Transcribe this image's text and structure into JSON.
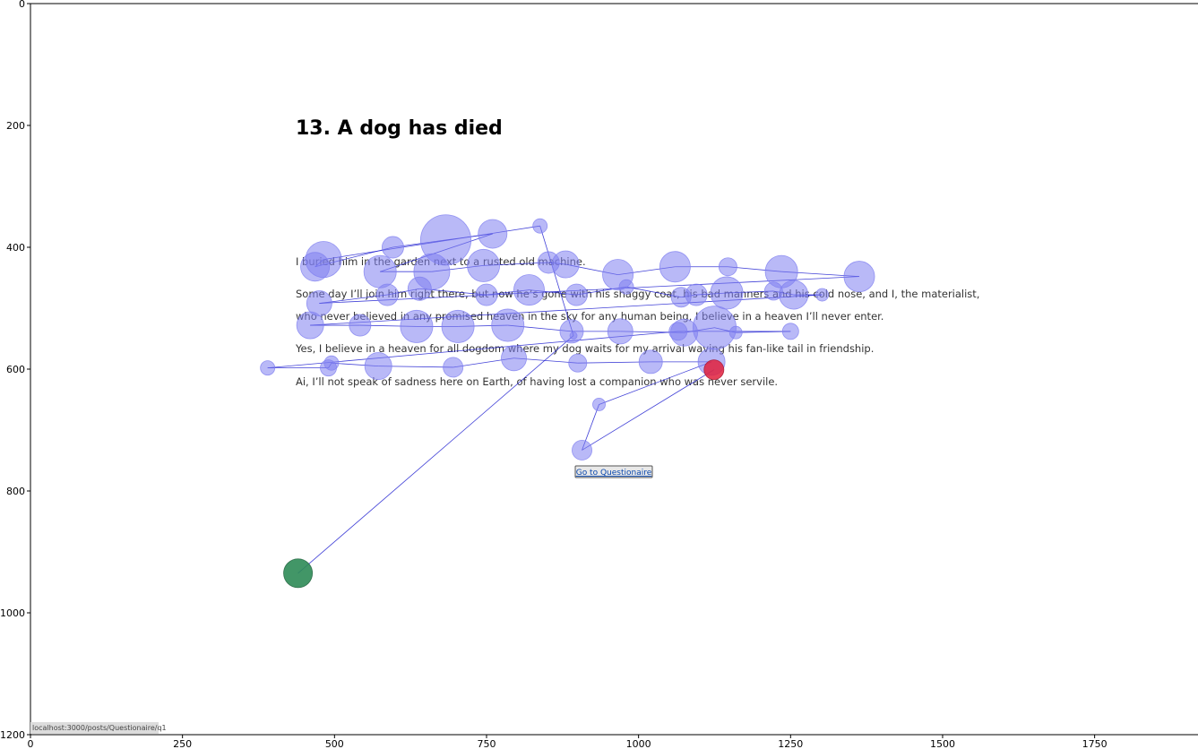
{
  "page": {
    "title": "13. A dog has died",
    "lines": [
      "I buried him in the garden next to a rusted old machine.",
      "Some day I’ll join him right there, but now he’s gone with his shaggy coat, his bad manners and his cold nose, and I, the materialist,",
      "who never believed in any promised heaven in the sky for any human being, I believe in a heaven I’ll never enter.",
      "Yes, I believe in a heaven for all dogdom where my dog waits for my arrival waving his fan-like tail in friendship.",
      "Ai, I’ll not speak of sadness here on Earth, of having lost a companion who was never servile."
    ],
    "button_label": "Go to Questionaire",
    "status_url": "localhost:3000/posts/Questionaire/q1"
  },
  "colors": {
    "fixation": "#8080f0",
    "path": "#2020d0",
    "start": "#2e8b57",
    "end": "#e0203c"
  },
  "chart_data": {
    "type": "scatter",
    "subtype": "gaze-scanpath",
    "xlim": [
      0,
      1920
    ],
    "ylim": [
      1200,
      0
    ],
    "x_ticks": [
      0,
      250,
      500,
      750,
      1000,
      1250,
      1500,
      1750
    ],
    "y_ticks": [
      0,
      200,
      400,
      600,
      800,
      1000,
      1200
    ],
    "xlabel": "",
    "ylabel": "",
    "grid": false,
    "fixations": [
      {
        "x": 440,
        "y": 935,
        "r": 16,
        "role": "start"
      },
      {
        "x": 893,
        "y": 545,
        "r": 4
      },
      {
        "x": 838,
        "y": 365,
        "r": 8
      },
      {
        "x": 482,
        "y": 420,
        "r": 20
      },
      {
        "x": 468,
        "y": 432,
        "r": 16
      },
      {
        "x": 596,
        "y": 400,
        "r": 12
      },
      {
        "x": 683,
        "y": 388,
        "r": 28
      },
      {
        "x": 760,
        "y": 378,
        "r": 16
      },
      {
        "x": 575,
        "y": 440,
        "r": 18
      },
      {
        "x": 660,
        "y": 440,
        "r": 20
      },
      {
        "x": 745,
        "y": 430,
        "r": 18
      },
      {
        "x": 852,
        "y": 425,
        "r": 12
      },
      {
        "x": 880,
        "y": 428,
        "r": 15
      },
      {
        "x": 966,
        "y": 445,
        "r": 17
      },
      {
        "x": 1060,
        "y": 432,
        "r": 17
      },
      {
        "x": 1147,
        "y": 432,
        "r": 10
      },
      {
        "x": 1235,
        "y": 440,
        "r": 18
      },
      {
        "x": 1363,
        "y": 448,
        "r": 17
      },
      {
        "x": 475,
        "y": 492,
        "r": 14
      },
      {
        "x": 587,
        "y": 478,
        "r": 12
      },
      {
        "x": 640,
        "y": 468,
        "r": 13
      },
      {
        "x": 750,
        "y": 478,
        "r": 12
      },
      {
        "x": 820,
        "y": 470,
        "r": 17
      },
      {
        "x": 898,
        "y": 478,
        "r": 12
      },
      {
        "x": 980,
        "y": 465,
        "r": 8
      },
      {
        "x": 1070,
        "y": 482,
        "r": 11
      },
      {
        "x": 1095,
        "y": 478,
        "r": 12
      },
      {
        "x": 1145,
        "y": 475,
        "r": 18
      },
      {
        "x": 1222,
        "y": 472,
        "r": 10
      },
      {
        "x": 1255,
        "y": 478,
        "r": 16
      },
      {
        "x": 1302,
        "y": 478,
        "r": 7
      },
      {
        "x": 460,
        "y": 528,
        "r": 15
      },
      {
        "x": 542,
        "y": 528,
        "r": 12
      },
      {
        "x": 635,
        "y": 530,
        "r": 18
      },
      {
        "x": 703,
        "y": 530,
        "r": 18
      },
      {
        "x": 785,
        "y": 528,
        "r": 18
      },
      {
        "x": 890,
        "y": 538,
        "r": 13
      },
      {
        "x": 970,
        "y": 538,
        "r": 14
      },
      {
        "x": 1075,
        "y": 540,
        "r": 15
      },
      {
        "x": 1125,
        "y": 532,
        "r": 24
      },
      {
        "x": 1160,
        "y": 540,
        "r": 7
      },
      {
        "x": 1250,
        "y": 538,
        "r": 9
      },
      {
        "x": 1065,
        "y": 538,
        "r": 10
      },
      {
        "x": 390,
        "y": 598,
        "r": 8
      },
      {
        "x": 490,
        "y": 598,
        "r": 9
      },
      {
        "x": 495,
        "y": 590,
        "r": 8
      },
      {
        "x": 572,
        "y": 595,
        "r": 15
      },
      {
        "x": 695,
        "y": 597,
        "r": 11
      },
      {
        "x": 795,
        "y": 582,
        "r": 14
      },
      {
        "x": 900,
        "y": 590,
        "r": 10
      },
      {
        "x": 1020,
        "y": 588,
        "r": 13
      },
      {
        "x": 1120,
        "y": 588,
        "r": 15
      },
      {
        "x": 935,
        "y": 658,
        "r": 7
      },
      {
        "x": 907,
        "y": 733,
        "r": 11
      },
      {
        "x": 1124,
        "y": 601,
        "r": 11,
        "role": "end"
      }
    ],
    "path_order": [
      0,
      1,
      2,
      3,
      4,
      5,
      6,
      7,
      8,
      9,
      10,
      11,
      12,
      13,
      14,
      15,
      16,
      17,
      18,
      19,
      20,
      21,
      22,
      23,
      24,
      25,
      26,
      27,
      28,
      29,
      30,
      31,
      32,
      33,
      34,
      35,
      36,
      37,
      38,
      39,
      40,
      41,
      42,
      43,
      44,
      45,
      46,
      47,
      48,
      49,
      50,
      51,
      52,
      53,
      54
    ]
  }
}
